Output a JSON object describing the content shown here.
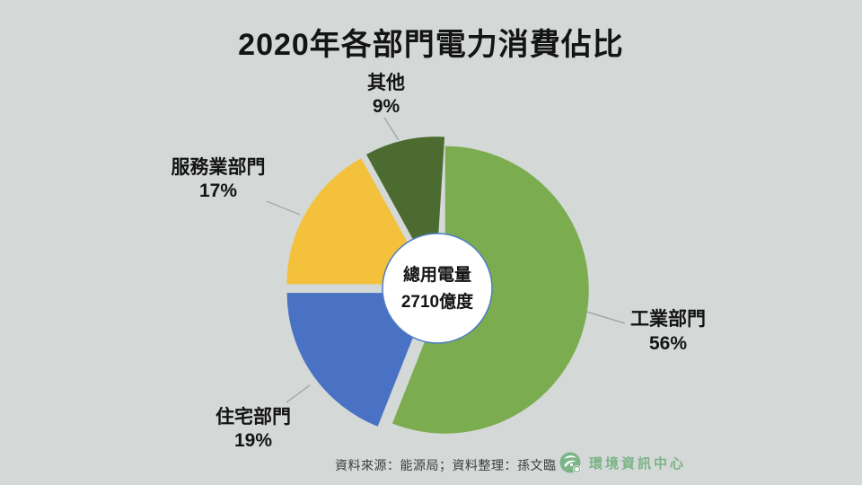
{
  "page": {
    "footer": {
      "source_text": "資料來源：能源局；資料整理：孫文臨",
      "logo_text": "環境資訊中心"
    }
  },
  "chart_data": {
    "type": "pie",
    "title": "2020年各部門電力消費佔比",
    "donut_hole": true,
    "center_label": {
      "line1": "總用電量",
      "line2": "2710億度"
    },
    "start_angle_deg": 0,
    "direction": "clockwise",
    "legend": "none",
    "slices": [
      {
        "id": "industry",
        "label": "工業部門",
        "value": 56,
        "pct_label": "56%",
        "color": "#7CAC50"
      },
      {
        "id": "residential",
        "label": "住宅部門",
        "value": 19,
        "pct_label": "19%",
        "color": "#4A72C4"
      },
      {
        "id": "service",
        "label": "服務業部門",
        "value": 17,
        "pct_label": "17%",
        "color": "#F3C13C"
      },
      {
        "id": "other",
        "label": "其他",
        "value": 9,
        "pct_label": "9%",
        "color": "#4C6B31"
      }
    ],
    "colors": {
      "background": "#D4D8D7",
      "hole_fill": "#FFFFFF",
      "hole_border": "#4D7EC0",
      "leader_line": "#9AA3A2",
      "title_text": "#141414",
      "footer_text": "#3d3d3d",
      "logo_green": "#7CB487"
    }
  }
}
